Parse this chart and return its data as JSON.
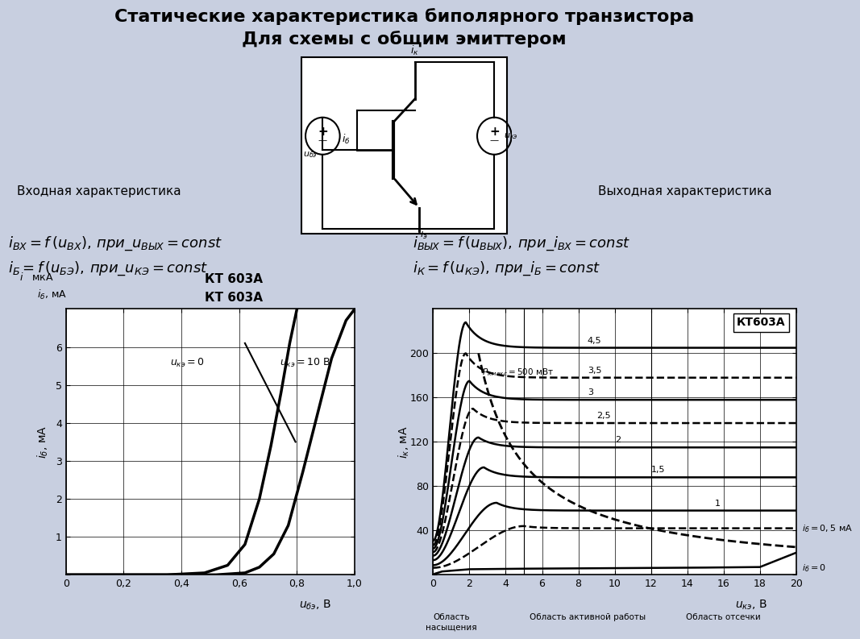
{
  "title_line1": "Статические характеристика биполярного транзистора",
  "title_line2": "Для схемы с общим эмиттером",
  "bg_color": "#c8cfe0",
  "label_left": "Входная характеристика",
  "label_right": "Выходная характеристика",
  "left_chart": {
    "title1": "КТ 603А",
    "title2": "КТ 603А",
    "xlim": [
      0,
      1.0
    ],
    "ylim": [
      0,
      7
    ],
    "xticks": [
      0,
      0.2,
      0.4,
      0.6,
      0.8,
      1.0
    ],
    "yticks": [
      0,
      1,
      2,
      3,
      4,
      5,
      6
    ],
    "curve_ukz0_x": [
      0,
      0.35,
      0.48,
      0.56,
      0.62,
      0.67,
      0.71,
      0.745,
      0.775,
      0.8
    ],
    "curve_ukz0_y": [
      0,
      0,
      0.05,
      0.25,
      0.8,
      2.0,
      3.4,
      4.8,
      6.1,
      7.0
    ],
    "curve_ukz10_x": [
      0,
      0.52,
      0.62,
      0.67,
      0.72,
      0.77,
      0.82,
      0.87,
      0.92,
      0.97,
      1.0
    ],
    "curve_ukz10_y": [
      0,
      0,
      0.05,
      0.2,
      0.55,
      1.3,
      2.7,
      4.2,
      5.7,
      6.7,
      7.0
    ],
    "line_x1": 0.62,
    "line_y1": 6.1,
    "line_x2": 0.795,
    "line_y2": 3.5
  },
  "right_chart": {
    "title": "КТ603А",
    "xlim": [
      0,
      20
    ],
    "ylim": [
      0,
      240
    ],
    "xticks": [
      0,
      2,
      4,
      6,
      8,
      10,
      12,
      14,
      16,
      18,
      20
    ],
    "yticks": [
      0,
      40,
      80,
      120,
      160,
      200
    ],
    "curves": [
      {
        "ib": 4.5,
        "peak_x": 1.8,
        "peak_y": 228,
        "flat_y": 205,
        "style": "solid"
      },
      {
        "ib": 3.5,
        "peak_x": 1.8,
        "peak_y": 200,
        "flat_y": 178,
        "style": "dashed"
      },
      {
        "ib": 3.0,
        "peak_x": 2.0,
        "peak_y": 175,
        "flat_y": 158,
        "style": "solid"
      },
      {
        "ib": 2.5,
        "peak_x": 2.2,
        "peak_y": 150,
        "flat_y": 137,
        "style": "dashed"
      },
      {
        "ib": 2.0,
        "peak_x": 2.5,
        "peak_y": 124,
        "flat_y": 115,
        "style": "solid"
      },
      {
        "ib": 1.5,
        "peak_x": 2.8,
        "peak_y": 97,
        "flat_y": 88,
        "style": "solid"
      },
      {
        "ib": 1.0,
        "peak_x": 3.5,
        "peak_y": 65,
        "flat_y": 58,
        "style": "solid"
      },
      {
        "ib": 0.5,
        "peak_x": 5.0,
        "peak_y": 44,
        "flat_y": 42,
        "style": "dashed"
      },
      {
        "ib": 0.0,
        "flat_y": 5,
        "style": "solid"
      }
    ],
    "curve_labels": [
      "4,5",
      "3,5",
      "3",
      "2,5",
      "2",
      "1,5",
      "1"
    ],
    "label_x_positions": [
      8.5,
      8.5,
      8.5,
      9.0,
      10.0,
      12.0,
      15.5
    ],
    "pmax_x_start": 2.5,
    "region_vline1": 5,
    "region_vline2": 12
  }
}
